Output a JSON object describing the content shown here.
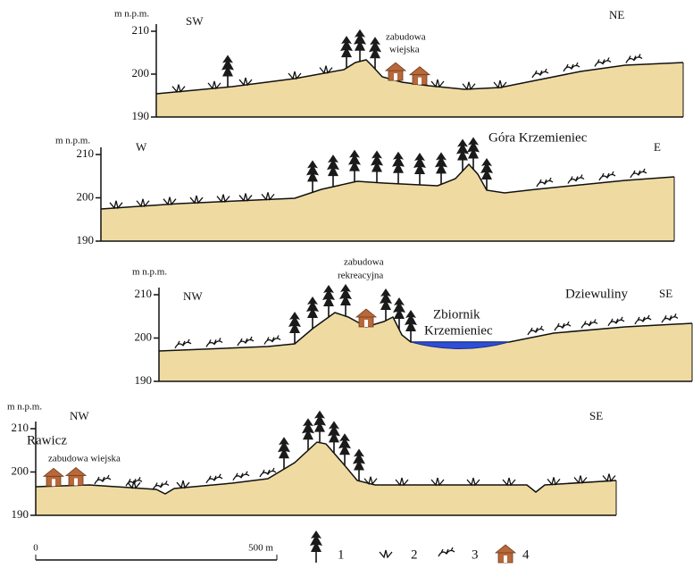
{
  "profiles": [
    {
      "axis_label": "m n.p.m.",
      "ticks": [
        "210",
        "200",
        "190"
      ],
      "direction_left": "SW",
      "direction_right": "NE",
      "annotations": [
        "zabudowa",
        "wiejska"
      ]
    },
    {
      "axis_label": "m n.p.m.",
      "ticks": [
        "210",
        "200",
        "190"
      ],
      "direction_left": "W",
      "direction_right": "E",
      "annotations": [
        "Góra Krzemieniec"
      ]
    },
    {
      "axis_label": "m n.p.m.",
      "ticks": [
        "210",
        "200",
        "190"
      ],
      "direction_left": "NW",
      "direction_right": "SE",
      "annotations": [
        "zabudowa",
        "rekreacyjna",
        "Zbiornik",
        "Krzemieniec",
        "Dziewuliny"
      ]
    },
    {
      "axis_label": "m n.p.m.",
      "ticks": [
        "210",
        "200",
        "190"
      ],
      "direction_left": "NW",
      "direction_right": "SE",
      "annotations": [
        "Rawicz",
        "zabudowa wiejska"
      ]
    }
  ],
  "legend": [
    "1",
    "2",
    "3",
    "4"
  ],
  "scale": {
    "start": "0",
    "end": "500 m"
  }
}
